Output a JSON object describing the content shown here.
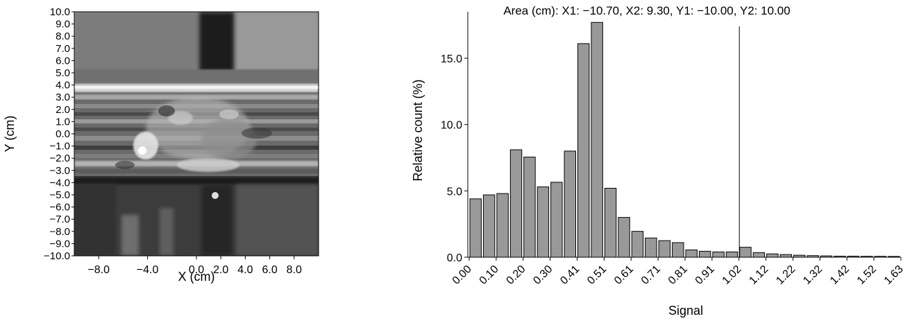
{
  "chart_data": [
    {
      "type": "heatmap",
      "xlabel": "X (cm)",
      "ylabel": "Y (cm)",
      "xlim": [
        -10.0,
        10.0
      ],
      "ylim": [
        -10.0,
        10.0
      ],
      "x_ticks": [
        "-8.0",
        "-4.0",
        "0.0",
        "2.0",
        "4.0",
        "6.0",
        "8.0"
      ],
      "x_tick_values": [
        -8.0,
        -4.0,
        0.0,
        2.0,
        4.0,
        6.0,
        8.0
      ],
      "y_ticks": [
        "10.0",
        "9.0",
        "8.0",
        "7.0",
        "6.0",
        "5.0",
        "4.0",
        "3.0",
        "2.0",
        "1.0",
        "0.0",
        "-1.0",
        "-2.0",
        "-3.0",
        "-4.0",
        "-5.0",
        "-6.0",
        "-7.0",
        "-8.0",
        "-9.0",
        "-10.0"
      ],
      "y_tick_values": [
        10,
        9,
        8,
        7,
        6,
        5,
        4,
        3,
        2,
        1,
        0,
        -1,
        -2,
        -3,
        -4,
        -5,
        -6,
        -7,
        -8,
        -9,
        -10
      ],
      "colormap": "grayscale"
    },
    {
      "type": "bar",
      "title": "Area (cm): X1: −10.70, X2: 9.30, Y1: −10.00, Y2: 10.00",
      "xlabel": "Signal",
      "ylabel": "Relative count (%)",
      "ylim": [
        0,
        18.5
      ],
      "y_ticks": [
        "0.0",
        "5.0",
        "10.0",
        "15.0"
      ],
      "y_tick_values": [
        0,
        5,
        10,
        15
      ],
      "x_ticks": [
        "0.00",
        "0.10",
        "0.20",
        "0.30",
        "0.41",
        "0.51",
        "0.61",
        "0.71",
        "0.81",
        "0.91",
        "1.02",
        "1.12",
        "1.22",
        "1.32",
        "1.42",
        "1.52",
        "1.63"
      ],
      "bin_width": 0.051,
      "values": [
        4.4,
        4.7,
        4.8,
        8.1,
        7.55,
        5.3,
        5.65,
        8.0,
        16.1,
        17.7,
        5.2,
        3.0,
        1.95,
        1.45,
        1.25,
        1.1,
        0.55,
        0.45,
        0.4,
        0.4,
        0.75,
        0.35,
        0.25,
        0.2,
        0.15,
        0.12,
        0.1,
        0.08,
        0.08,
        0.07,
        0.07,
        0.06
      ],
      "vertical_line_x": 1.02,
      "bar_color": "#999999",
      "grid": false
    }
  ]
}
